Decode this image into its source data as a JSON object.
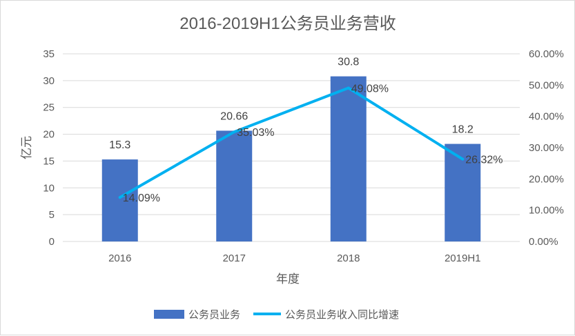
{
  "chart_data": {
    "type": "bar+line",
    "title": "2016-2019H1公务员业务营收",
    "categories": [
      "2016",
      "2017",
      "2018",
      "2019H1"
    ],
    "series": [
      {
        "name": "公务员业务",
        "type": "bar",
        "axis": "left",
        "values": [
          15.3,
          20.66,
          30.8,
          18.2
        ],
        "labels": [
          "15.3",
          "20.66",
          "30.8",
          "18.2"
        ],
        "color": "#4472c4"
      },
      {
        "name": "公务员业务收入同比增速",
        "type": "line",
        "axis": "right",
        "values": [
          14.09,
          35.03,
          49.08,
          26.32
        ],
        "labels": [
          "14.09%",
          "35.03%",
          "49.08%",
          "26.32%"
        ],
        "color": "#00b0f0"
      }
    ],
    "xlabel": "年度",
    "ylabel": "亿元",
    "ylim": [
      0,
      35
    ],
    "y_ticks": [
      "0",
      "5",
      "10",
      "15",
      "20",
      "25",
      "30",
      "35"
    ],
    "y2lim": [
      0,
      60
    ],
    "y2_ticks": [
      "0.00%",
      "10.00%",
      "20.00%",
      "30.00%",
      "40.00%",
      "50.00%",
      "60.00%"
    ],
    "grid": true,
    "legend_position": "bottom"
  },
  "colors": {
    "grid": "#d9d9d9",
    "text": "#595959"
  }
}
